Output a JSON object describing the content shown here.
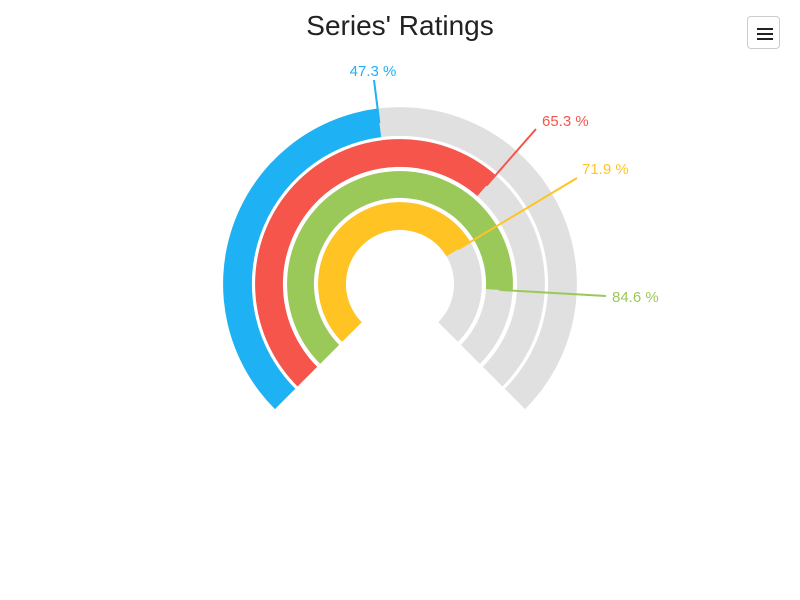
{
  "chart": {
    "title": "Series' Ratings",
    "menu_icon": "hamburger-menu-icon"
  },
  "chart_data": {
    "type": "radial-bar",
    "title": "Series' Ratings",
    "max": 100,
    "track_color": "#e0e0e0",
    "series": [
      {
        "value": 47.3,
        "label": "47.3 %",
        "color": "#1eb1f4"
      },
      {
        "value": 65.3,
        "label": "65.3 %",
        "color": "#f5554a"
      },
      {
        "value": 84.6,
        "label": "84.6 %",
        "color": "#9ac859"
      },
      {
        "value": 71.9,
        "label": "71.9 %",
        "color": "#ffc423"
      }
    ]
  }
}
